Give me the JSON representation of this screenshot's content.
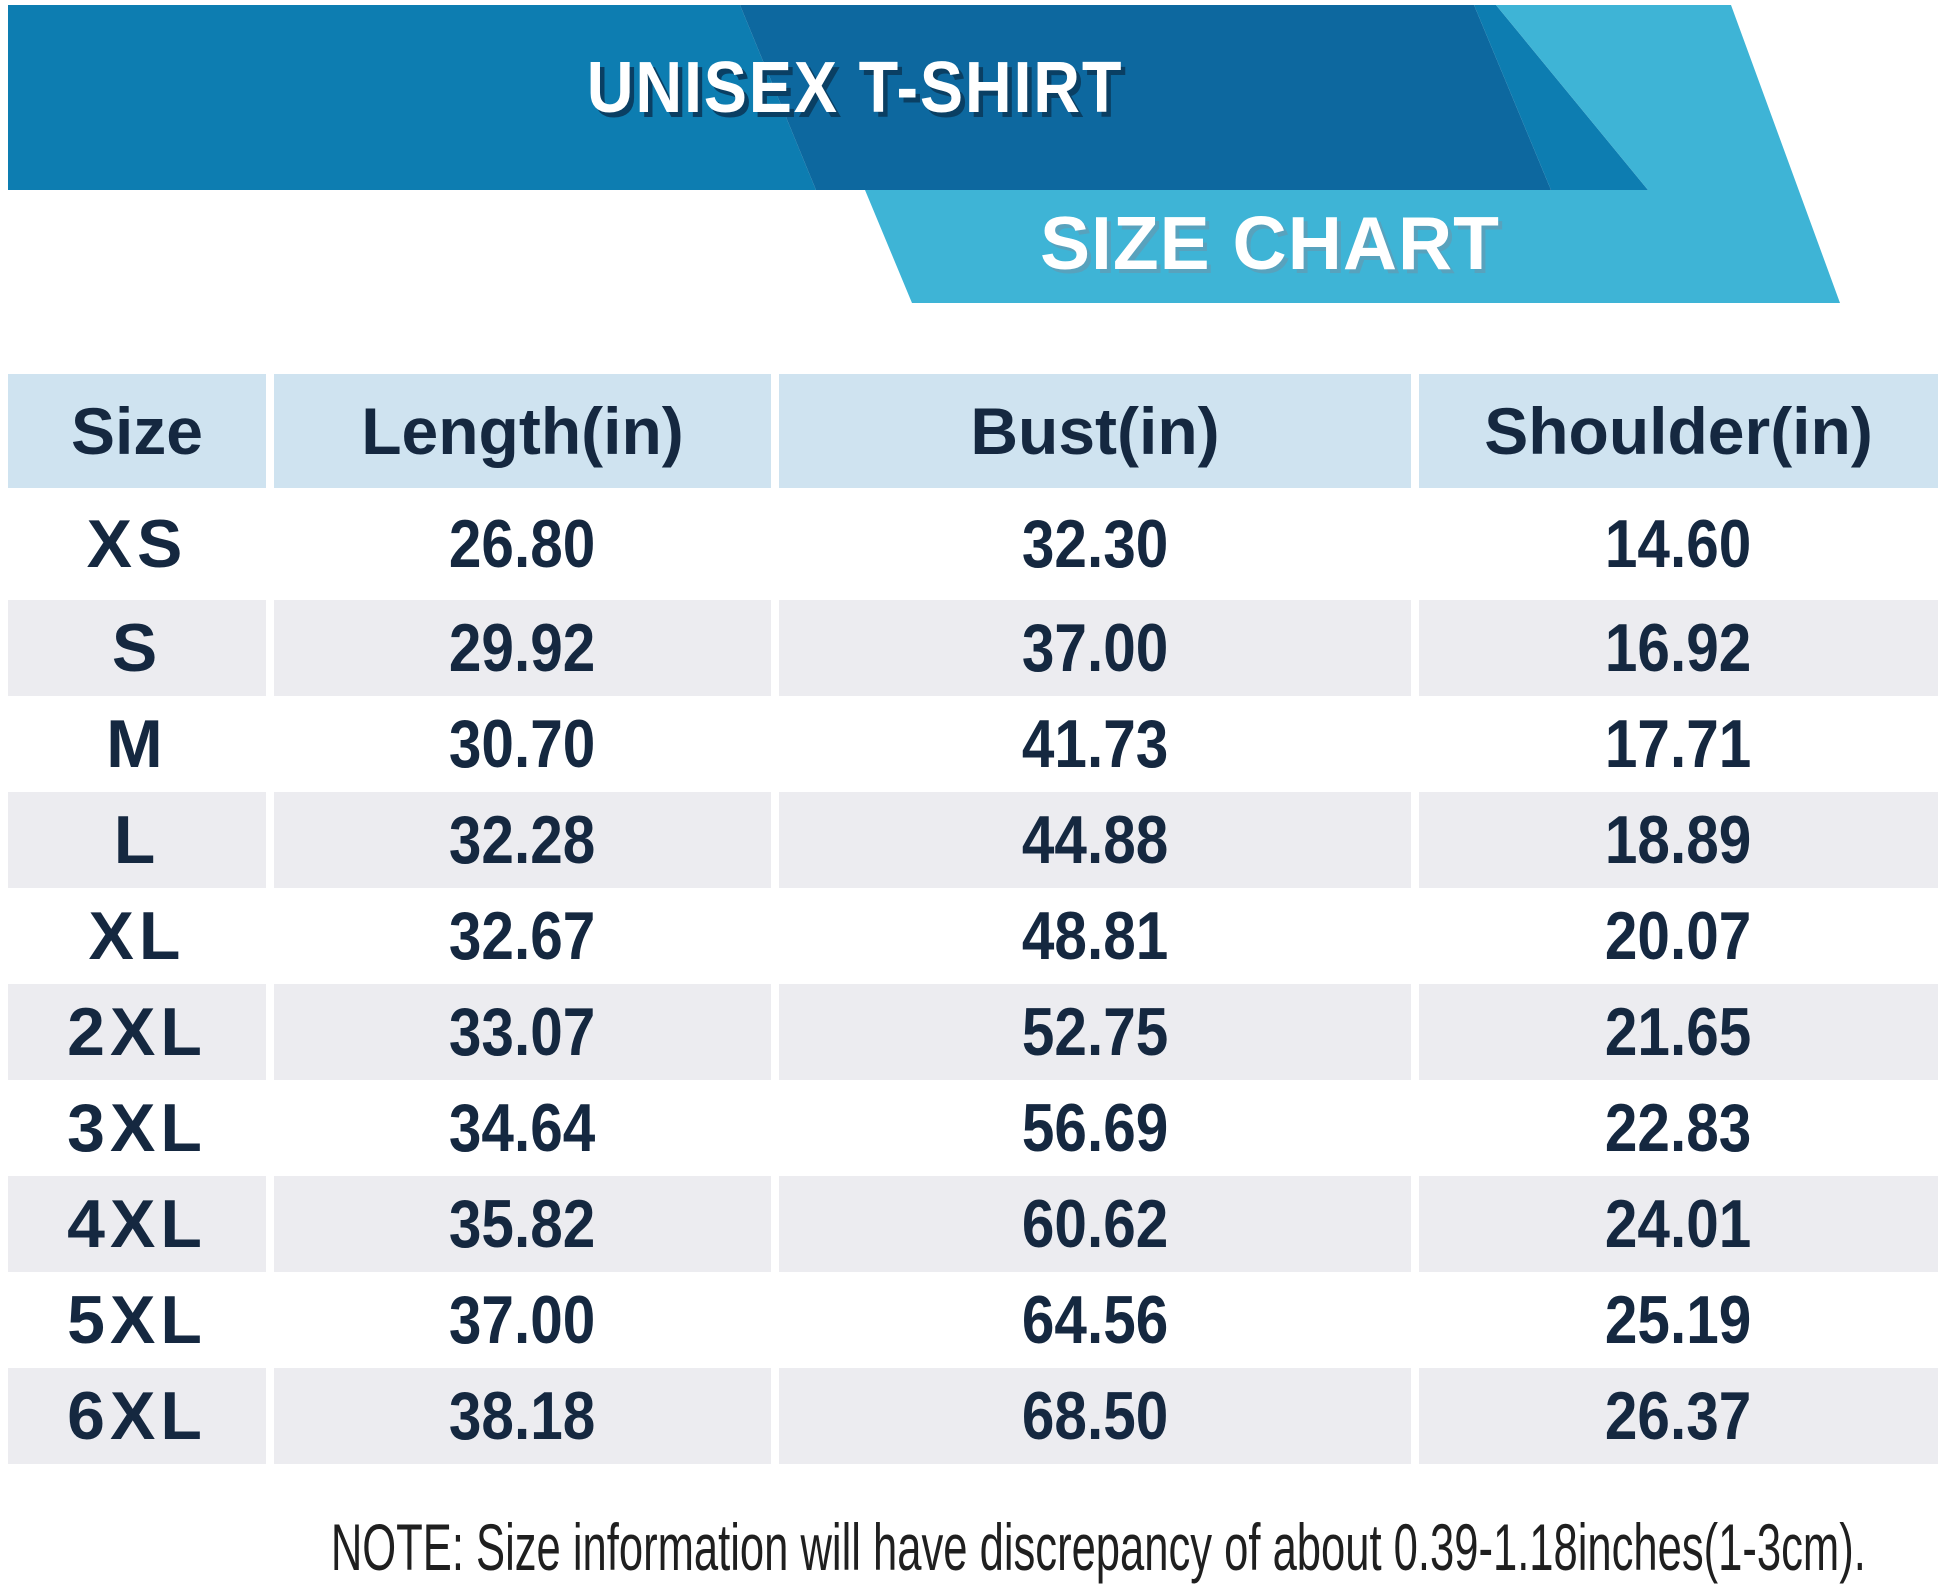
{
  "header": {
    "title": "UNISEX T-SHIRT",
    "ribbon_label": "SIZE CHART"
  },
  "table": {
    "columns": [
      "Size",
      "Length(in)",
      "Bust(in)",
      "Shoulder(in)"
    ],
    "rows": [
      {
        "size": "XS",
        "length_in": "26.80",
        "bust_in": "32.30",
        "shoulder_in": "14.60"
      },
      {
        "size": "S",
        "length_in": "29.92",
        "bust_in": "37.00",
        "shoulder_in": "16.92"
      },
      {
        "size": "M",
        "length_in": "30.70",
        "bust_in": "41.73",
        "shoulder_in": "17.71"
      },
      {
        "size": "L",
        "length_in": "32.28",
        "bust_in": "44.88",
        "shoulder_in": "18.89"
      },
      {
        "size": "XL",
        "length_in": "32.67",
        "bust_in": "48.81",
        "shoulder_in": "20.07"
      },
      {
        "size": "2XL",
        "length_in": "33.07",
        "bust_in": "52.75",
        "shoulder_in": "21.65"
      },
      {
        "size": "3XL",
        "length_in": "34.64",
        "bust_in": "56.69",
        "shoulder_in": "22.83"
      },
      {
        "size": "4XL",
        "length_in": "35.82",
        "bust_in": "60.62",
        "shoulder_in": "24.01"
      },
      {
        "size": "5XL",
        "length_in": "37.00",
        "bust_in": "64.56",
        "shoulder_in": "25.19"
      },
      {
        "size": "6XL",
        "length_in": "38.18",
        "bust_in": "68.50",
        "shoulder_in": "26.37"
      }
    ]
  },
  "note": "NOTE: Size information will have discrepancy of about 0.39-1.18inches(1-3cm).",
  "colors": {
    "banner_mid": "#0d7db1",
    "banner_dark": "#0d689f",
    "banner_light": "#3eb4d6",
    "header_bg": "#cfe3f0",
    "stripe_gray": "#ececf0",
    "text_navy": "#152840",
    "note_text": "#1f1f1f",
    "title_shadow": "#0a3f63"
  }
}
